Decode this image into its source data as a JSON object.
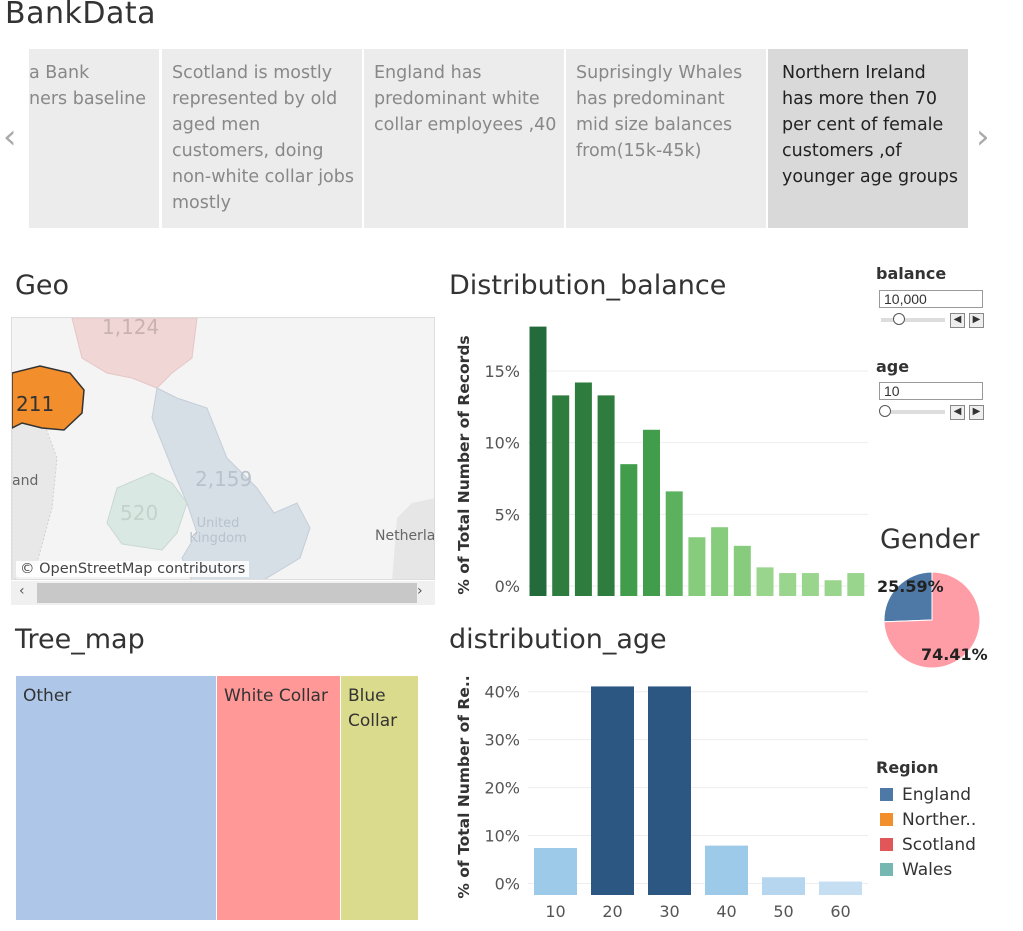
{
  "dashboard": {
    "title": "BankData"
  },
  "story": {
    "cards": [
      {
        "text": "a Bank\nners baseline",
        "active": false
      },
      {
        "text": "Scotland is mostly\nrepresented by old\naged men\ncustomers, doing\nnon-white collar jobs\nmostly",
        "active": false
      },
      {
        "text": "England has\npredominant white\ncollar employees ,40",
        "active": false
      },
      {
        "text": "Suprisingly Whales\nhas predominant\nmid size balances\nfrom(15k-45k)",
        "active": false
      },
      {
        "text": "Northern Ireland\nhas more then 70\nper cent of female\ncustomers ,of\nyounger age groups",
        "active": true
      }
    ],
    "prev_icon": "chevron-left-icon",
    "next_icon": "chevron-right-icon"
  },
  "geo": {
    "title": "Geo",
    "labels": [
      {
        "region": "Scotland",
        "value": "1,124"
      },
      {
        "region": "Northern Ireland",
        "value": "211"
      },
      {
        "region": "England",
        "value": "2,159"
      },
      {
        "region": "Wales",
        "value": "520"
      }
    ],
    "place_labels": [
      "United\nKingdom",
      "Netherla",
      "and"
    ],
    "attribution": "© OpenStreetMap contributors",
    "colors": {
      "northern_ireland": "#f28e2b",
      "scotland": "#f1d6d6",
      "england": "#d6dee6",
      "wales": "#d9e8e2",
      "sea": "#f5f5f5"
    }
  },
  "filters": {
    "balance": {
      "label": "balance",
      "value": "10,000"
    },
    "age": {
      "label": "age",
      "value": "10"
    }
  },
  "gender": {
    "title": "Gender"
  },
  "legend": {
    "title": "Region",
    "items": [
      {
        "label": "England",
        "color": "#4e79a7"
      },
      {
        "label": "Norther..",
        "color": "#f28e2b"
      },
      {
        "label": "Scotland",
        "color": "#e15759"
      },
      {
        "label": "Wales",
        "color": "#76b7b2"
      }
    ]
  },
  "chart_data": [
    {
      "id": "distribution_balance",
      "type": "bar",
      "title": "Distribution_balance",
      "ylabel": "% of Total Number of Records",
      "ylim": [
        -0.7,
        18.7
      ],
      "yticks": [
        0,
        5,
        10,
        15
      ],
      "ytick_labels": [
        "0%",
        "5%",
        "10%",
        "15%"
      ],
      "grid": true,
      "values": [
        18.1,
        13.3,
        14.2,
        13.3,
        8.5,
        10.9,
        6.6,
        3.4,
        4.1,
        2.8,
        1.3,
        0.9,
        0.9,
        0.4,
        0.9
      ],
      "colors": [
        "#246b3c",
        "#2e7d3f",
        "#2e7d3f",
        "#2e7d3f",
        "#419c4c",
        "#419c4c",
        "#5bb15e",
        "#86cc7c",
        "#86cc7c",
        "#86cc7c",
        "#9ad58d",
        "#9ad58d",
        "#9ad58d",
        "#9ad58d",
        "#9ad58d"
      ]
    },
    {
      "id": "distribution_age",
      "type": "bar",
      "title": "distribution_age",
      "ylabel": "% of Total Number of Re..",
      "categories": [
        "10",
        "20",
        "30",
        "40",
        "50",
        "60"
      ],
      "values": [
        7.4,
        41.1,
        41.1,
        7.9,
        1.3,
        0.4
      ],
      "ylim": [
        -2.4,
        43.9
      ],
      "yticks": [
        0,
        10,
        20,
        30,
        40
      ],
      "ytick_labels": [
        "0%",
        "10%",
        "20%",
        "30%",
        "40%"
      ],
      "grid": true,
      "colors": [
        "#9ecae9",
        "#2c5783",
        "#2c5783",
        "#9ecae9",
        "#b5d6ee",
        "#c5def2"
      ]
    },
    {
      "id": "gender",
      "type": "pie",
      "slices": [
        {
          "label": "25.59%",
          "value": 25.59,
          "color": "#4e79a7"
        },
        {
          "label": "74.41%",
          "value": 74.41,
          "color": "#ff9da7"
        }
      ]
    },
    {
      "id": "tree_map",
      "type": "treemap",
      "title": "Tree_map",
      "items": [
        {
          "label": "Other",
          "value": 200,
          "color": "#aec7e8"
        },
        {
          "label": "White Collar",
          "value": 124,
          "color": "#ff9896"
        },
        {
          "label": "Blue\nCollar",
          "value": 77,
          "color": "#dbdb8d"
        }
      ]
    }
  ]
}
